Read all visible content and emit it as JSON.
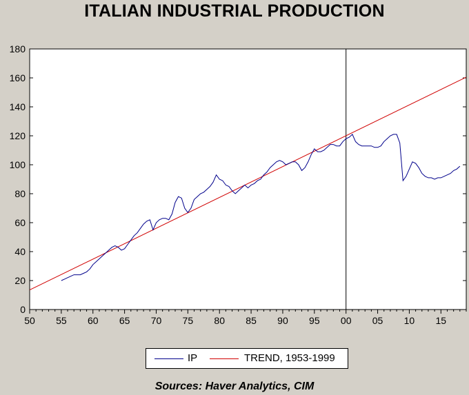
{
  "chart_data": {
    "type": "line",
    "title": "ITALIAN INDUSTRIAL PRODUCTION",
    "xlabel": "",
    "ylabel": "",
    "xlim": [
      1950,
      2019
    ],
    "ylim": [
      0,
      180
    ],
    "y_ticks": [
      0,
      20,
      40,
      60,
      80,
      100,
      120,
      140,
      160,
      180
    ],
    "y_tick_labels": [
      "0",
      "20",
      "40",
      "60",
      "80",
      "100",
      "120",
      "140",
      "160",
      "180"
    ],
    "x_ticks": [
      1950,
      1955,
      1960,
      1965,
      1970,
      1975,
      1980,
      1985,
      1990,
      1995,
      2000,
      2005,
      2010,
      2015
    ],
    "x_tick_labels": [
      "50",
      "55",
      "60",
      "65",
      "70",
      "75",
      "80",
      "85",
      "90",
      "95",
      "00",
      "05",
      "10",
      "15"
    ],
    "vertical_marker_x": 2000,
    "legend_position": "bottom-center",
    "series": [
      {
        "name": "IP",
        "color": "#00008b",
        "x": [
          1955.0,
          1955.5,
          1956.0,
          1956.5,
          1957.0,
          1957.5,
          1958.0,
          1958.5,
          1959.0,
          1959.5,
          1960.0,
          1960.5,
          1961.0,
          1961.5,
          1962.0,
          1962.5,
          1963.0,
          1963.5,
          1964.0,
          1964.5,
          1965.0,
          1965.5,
          1966.0,
          1966.5,
          1967.0,
          1967.5,
          1968.0,
          1968.5,
          1969.0,
          1969.5,
          1970.0,
          1970.5,
          1971.0,
          1971.5,
          1972.0,
          1972.5,
          1973.0,
          1973.5,
          1974.0,
          1974.5,
          1975.0,
          1975.5,
          1976.0,
          1976.5,
          1977.0,
          1977.5,
          1978.0,
          1978.5,
          1979.0,
          1979.5,
          1980.0,
          1980.5,
          1981.0,
          1981.5,
          1982.0,
          1982.5,
          1983.0,
          1983.5,
          1984.0,
          1984.5,
          1985.0,
          1985.5,
          1986.0,
          1986.5,
          1987.0,
          1987.5,
          1988.0,
          1988.5,
          1989.0,
          1989.5,
          1990.0,
          1990.5,
          1991.0,
          1991.5,
          1992.0,
          1992.5,
          1993.0,
          1993.5,
          1994.0,
          1994.5,
          1995.0,
          1995.5,
          1996.0,
          1996.5,
          1997.0,
          1997.5,
          1998.0,
          1998.5,
          1999.0,
          1999.5,
          2000.0,
          2000.5,
          2001.0,
          2001.5,
          2002.0,
          2002.5,
          2003.0,
          2003.5,
          2004.0,
          2004.5,
          2005.0,
          2005.5,
          2006.0,
          2006.5,
          2007.0,
          2007.5,
          2008.0,
          2008.5,
          2009.0,
          2009.5,
          2010.0,
          2010.5,
          2011.0,
          2011.5,
          2012.0,
          2012.5,
          2013.0,
          2013.5,
          2014.0,
          2014.5,
          2015.0,
          2015.5,
          2016.0,
          2016.5,
          2017.0,
          2017.5,
          2018.0
        ],
        "values": [
          20,
          21,
          22,
          23,
          24,
          24,
          24,
          25,
          26,
          28,
          31,
          33,
          35,
          37,
          39,
          41,
          43,
          44,
          43,
          41,
          42,
          45,
          48,
          51,
          53,
          56,
          59,
          61,
          62,
          55,
          60,
          62,
          63,
          63,
          62,
          66,
          74,
          78,
          77,
          70,
          67,
          70,
          76,
          78,
          80,
          81,
          83,
          85,
          88,
          93,
          90,
          89,
          86,
          85,
          82,
          80,
          82,
          84,
          86,
          84,
          86,
          87,
          89,
          90,
          93,
          95,
          98,
          100,
          102,
          103,
          102,
          100,
          101,
          102,
          102,
          100,
          96,
          98,
          102,
          107,
          111,
          109,
          109,
          110,
          112,
          114,
          114,
          113,
          113,
          116,
          118,
          119,
          121,
          116,
          114,
          113,
          113,
          113,
          113,
          112,
          112,
          113,
          116,
          118,
          120,
          121,
          121,
          115,
          89,
          92,
          97,
          102,
          101,
          98,
          94,
          92,
          91,
          91,
          90,
          91,
          91,
          92,
          93,
          94,
          96,
          97,
          99
        ]
      },
      {
        "name": "TREND, 1953-1999",
        "color": "#d00000",
        "x": [
          1950,
          2019
        ],
        "values": [
          13.5,
          160.5
        ]
      }
    ],
    "source_note": "Sources:  Haver Analytics, CIM"
  }
}
